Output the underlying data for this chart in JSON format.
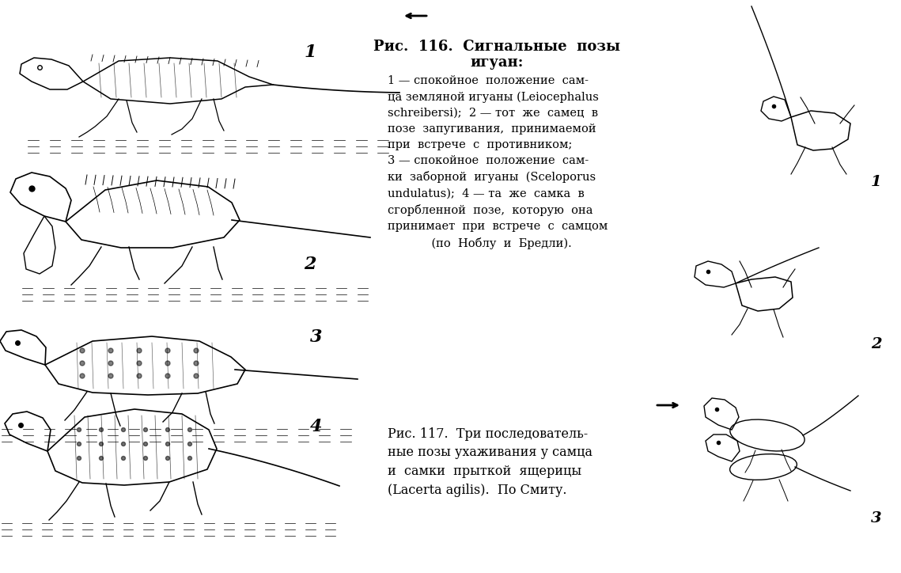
{
  "bg_color": "#ffffff",
  "fig_width": 11.39,
  "fig_height": 7.24,
  "title1": "Рис.  116.  Сигнальные  позы",
  "title1_sub": "игуан:",
  "caption_text": "1 — спокойное  положение  сам-\nца земляной игуаны (Leiocephalus\nschreibersi);  2 — тот  же  самец  в\nпозе  запугивания,  принимаемой\nпри  встрече  с  противником;\n3 — спокойное  положение  сам-\nки  заборной  игуаны  (Sceloporus\nundulatus);  4 — та  же  самка  в\nсгорбленной  позе,  которую  она\nпринимает  при  встрече  с  самцом\n            (по  Ноблу  и  Бредли).",
  "caption2_text": "Рис. 117.  Три последователь-\nные позы ухаживания у самца\nи  самки  прыткой  ящерицы\n(Lacerta agilis).  По Смиту.",
  "label1": "1",
  "label2": "2",
  "label3": "3",
  "label4": "4",
  "right_label1": "1",
  "right_label2": "2",
  "right_label3": "3",
  "text_color": "#000000",
  "title_fontsize": 13,
  "caption_fontsize": 10.5,
  "label_fontsize": 14
}
